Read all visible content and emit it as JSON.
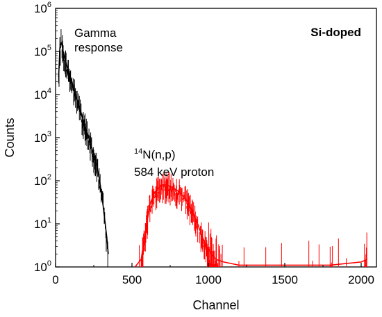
{
  "chart_data": {
    "type": "line",
    "title": "",
    "xlabel": "Channel",
    "ylabel": "Counts",
    "xlim": [
      0,
      2100
    ],
    "ylim": [
      1,
      1000000
    ],
    "yscale": "log",
    "x_ticks": [
      0,
      500,
      1000,
      1500,
      2000
    ],
    "x_tick_labels": [
      "0",
      "500",
      "1000",
      "1500",
      "2000"
    ],
    "y_ticks": [
      1,
      10,
      100,
      1000,
      10000,
      100000,
      1000000
    ],
    "y_tick_labels": [
      {
        "base": "10",
        "exp": "0"
      },
      {
        "base": "10",
        "exp": "1"
      },
      {
        "base": "10",
        "exp": "2"
      },
      {
        "base": "10",
        "exp": "3"
      },
      {
        "base": "10",
        "exp": "4"
      },
      {
        "base": "10",
        "exp": "5"
      },
      {
        "base": "10",
        "exp": "6"
      }
    ],
    "grid": false,
    "legend": "none",
    "series": [
      {
        "color": "#000000",
        "x": [
          20,
          28,
          36,
          42,
          50,
          60,
          75,
          90,
          110,
          130,
          150,
          170,
          190,
          210,
          230,
          250,
          270,
          285,
          295,
          305,
          315,
          325,
          335,
          345
        ],
        "y": [
          25000,
          120000,
          160000,
          140000,
          100000,
          70000,
          45000,
          30000,
          17000,
          10000,
          6000,
          3500,
          2000,
          1200,
          700,
          400,
          220,
          120,
          70,
          40,
          20,
          10,
          5,
          2
        ]
      },
      {
        "color": "#ff0000",
        "x": [
          520,
          560,
          600,
          620,
          650,
          680,
          700,
          720,
          750,
          780,
          810,
          840,
          870,
          900,
          930,
          960,
          990,
          1020,
          1050,
          1100,
          1150,
          1200,
          1300,
          1400,
          1500,
          1600,
          1700,
          1800,
          1900,
          2000,
          2040
        ],
        "y": [
          1,
          1.5,
          12,
          30,
          55,
          70,
          80,
          80,
          75,
          65,
          55,
          42,
          30,
          18,
          10,
          5,
          3,
          2,
          1.5,
          1.3,
          1.2,
          1.1,
          1.1,
          1.1,
          1.1,
          1.1,
          1.1,
          1.1,
          1.2,
          1.3,
          1.5
        ]
      }
    ],
    "annotations": {
      "gamma_line1": "Gamma",
      "gamma_line2": "response",
      "proton_sup": "14",
      "proton_rest": "N(n,p)",
      "proton_line2": "584 keV proton",
      "sample": "Si-doped"
    }
  }
}
